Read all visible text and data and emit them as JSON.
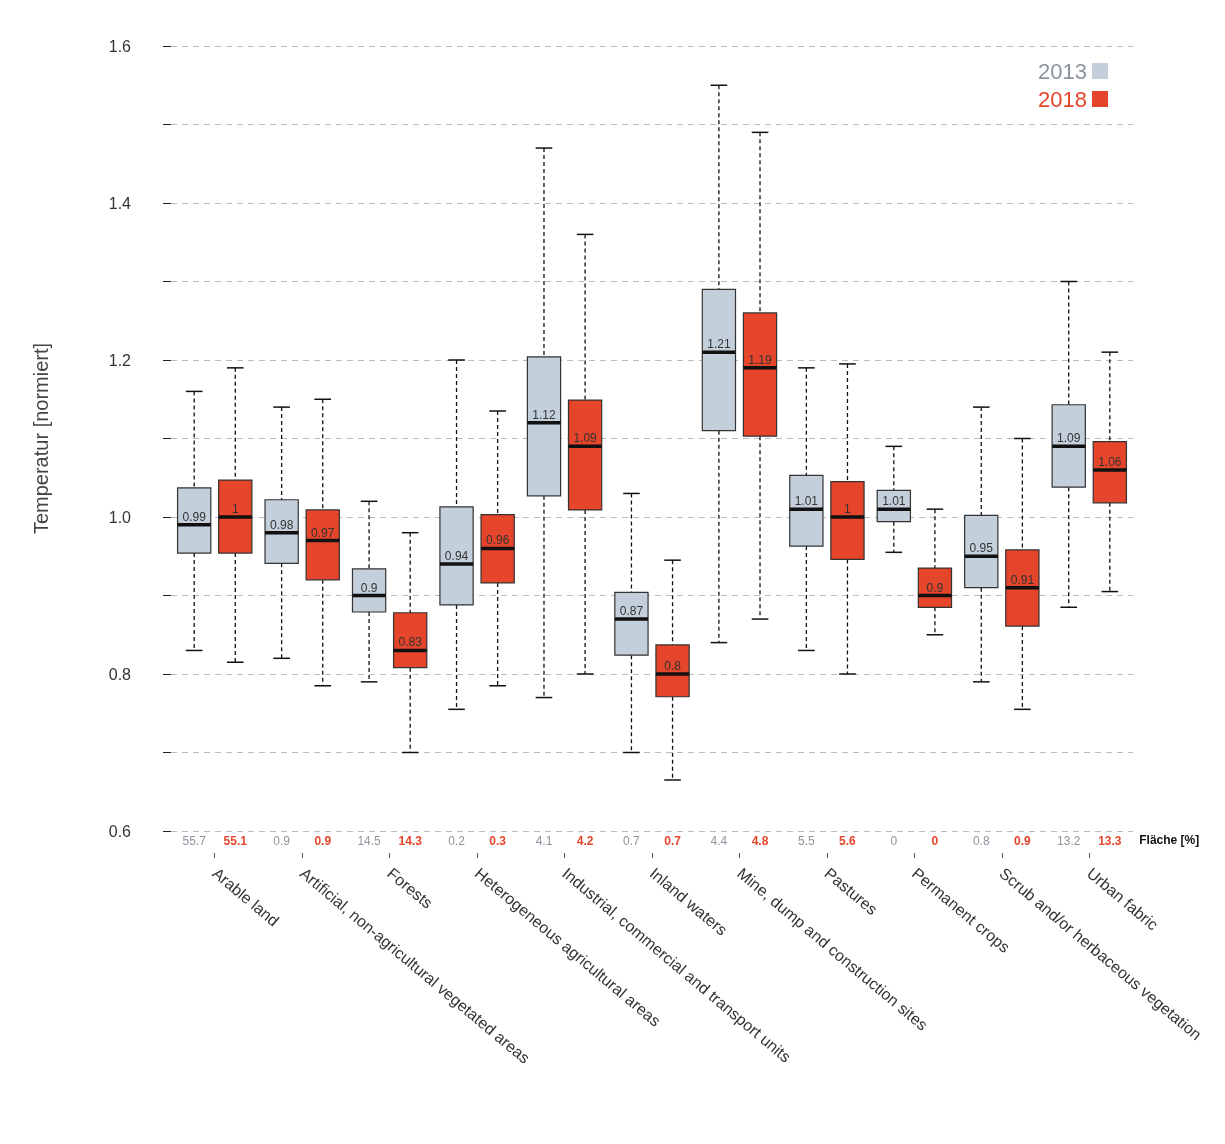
{
  "chart_data": {
    "type": "box",
    "ylabel": "Temperatur [normiert]",
    "categories": [
      "Arable land",
      "Artificial, non-agricultural vegetated areas",
      "Forests",
      "Heterogeneous agricultural areas",
      "Industrial, commercial and transport units",
      "Inland waters",
      "Mine, dump and construction sites",
      "Pastures",
      "Permanent crops",
      "Scrub and/or herbaceous vegetation",
      "Urban fabric"
    ],
    "series": [
      {
        "name": "2013",
        "color": "#c3cfdb",
        "boxes": [
          {
            "low": 0.83,
            "q1": 0.954,
            "median": 0.99,
            "q3": 1.037,
            "high": 1.16
          },
          {
            "low": 0.82,
            "q1": 0.941,
            "median": 0.98,
            "q3": 1.022,
            "high": 1.14
          },
          {
            "low": 0.79,
            "q1": 0.879,
            "median": 0.9,
            "q3": 0.934,
            "high": 1.02
          },
          {
            "low": 0.755,
            "q1": 0.888,
            "median": 0.94,
            "q3": 1.013,
            "high": 1.2
          },
          {
            "low": 0.77,
            "q1": 1.027,
            "median": 1.12,
            "q3": 1.204,
            "high": 1.47
          },
          {
            "low": 0.7,
            "q1": 0.824,
            "median": 0.87,
            "q3": 0.904,
            "high": 1.03
          },
          {
            "low": 0.84,
            "q1": 1.11,
            "median": 1.21,
            "q3": 1.29,
            "high": 1.55
          },
          {
            "low": 0.83,
            "q1": 0.963,
            "median": 1.01,
            "q3": 1.053,
            "high": 1.19
          },
          {
            "low": 0.955,
            "q1": 0.994,
            "median": 1.01,
            "q3": 1.034,
            "high": 1.09
          },
          {
            "low": 0.79,
            "q1": 0.91,
            "median": 0.95,
            "q3": 1.002,
            "high": 1.14
          },
          {
            "low": 0.885,
            "q1": 1.038,
            "median": 1.09,
            "q3": 1.143,
            "high": 1.3
          }
        ],
        "value_labels": [
          "0.99",
          "0.98",
          "0.9",
          "0.94",
          "1.12",
          "0.87",
          "1.21",
          "1.01",
          "1.01",
          "0.95",
          "1.09"
        ]
      },
      {
        "name": "2018",
        "color": "#e5452a",
        "boxes": [
          {
            "low": 0.815,
            "q1": 0.954,
            "median": 1,
            "q3": 1.047,
            "high": 1.19
          },
          {
            "low": 0.785,
            "q1": 0.92,
            "median": 0.97,
            "q3": 1.009,
            "high": 1.15
          },
          {
            "low": 0.7,
            "q1": 0.808,
            "median": 0.83,
            "q3": 0.878,
            "high": 0.98
          },
          {
            "low": 0.785,
            "q1": 0.916,
            "median": 0.96,
            "q3": 1.003,
            "high": 1.135
          },
          {
            "low": 0.8,
            "q1": 1.009,
            "median": 1.09,
            "q3": 1.149,
            "high": 1.36
          },
          {
            "low": 0.665,
            "q1": 0.771,
            "median": 0.8,
            "q3": 0.837,
            "high": 0.945
          },
          {
            "low": 0.87,
            "q1": 1.103,
            "median": 1.19,
            "q3": 1.26,
            "high": 1.49
          },
          {
            "low": 0.8,
            "q1": 0.946,
            "median": 1,
            "q3": 1.045,
            "high": 1.195
          },
          {
            "low": 0.85,
            "q1": 0.885,
            "median": 0.9,
            "q3": 0.935,
            "high": 1.01
          },
          {
            "low": 0.755,
            "q1": 0.861,
            "median": 0.91,
            "q3": 0.958,
            "high": 1.1
          },
          {
            "low": 0.905,
            "q1": 1.018,
            "median": 1.06,
            "q3": 1.096,
            "high": 1.21
          }
        ],
        "value_labels": [
          "1",
          "0.97",
          "0.83",
          "0.96",
          "1.09",
          "0.8",
          "1.19",
          "1",
          "0.9",
          "0.91",
          "1.06"
        ]
      }
    ],
    "ylim": [
      0.6,
      1.6
    ],
    "yticks": [
      0.6,
      {
        "value": 0.7,
        "label": null
      },
      0.8,
      {
        "value": 0.9,
        "label": null
      },
      {
        "value": 1,
        "label": "1.0"
      },
      {
        "value": 1.1,
        "label": null
      },
      1.2,
      {
        "value": 1.3,
        "label": null
      },
      1.4,
      {
        "value": 1.5,
        "label": null
      },
      1.6
    ],
    "grid": "y",
    "legend": "top right",
    "annotations": [
      "Fläche [%]",
      "55.7",
      "55.1",
      "0.9",
      "0.9",
      "14.5",
      "14.3",
      "0.2",
      "0.3",
      "4.1",
      "4.2",
      "0.7",
      "0.7",
      "4.4",
      "4.8",
      "5.5",
      "5.6",
      "0",
      "0",
      "0.8",
      "0.9",
      "13.2",
      "13.3"
    ]
  }
}
